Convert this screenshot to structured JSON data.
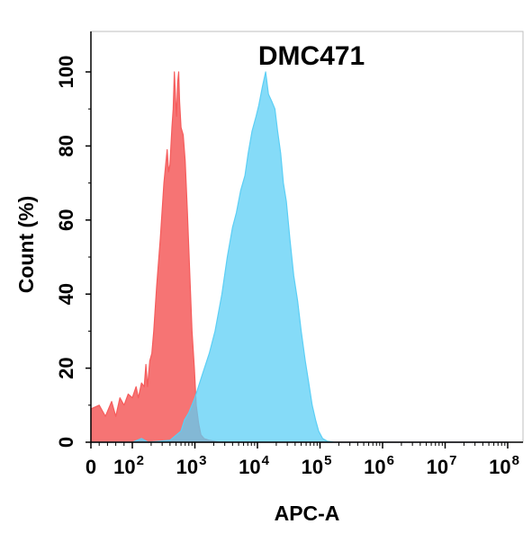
{
  "chart_data": {
    "type": "area",
    "title": "DMC471",
    "xlabel": "APC-A",
    "ylabel": "Count  (%)",
    "x_scale": "biexponential",
    "xlim": [
      0,
      100000000
    ],
    "ylim": [
      0,
      100
    ],
    "x_ticks": [
      {
        "value": 0,
        "base": "0",
        "exp": ""
      },
      {
        "value": 100,
        "base": "10",
        "exp": "2"
      },
      {
        "value": 1000,
        "base": "10",
        "exp": "3"
      },
      {
        "value": 10000,
        "base": "10",
        "exp": "4"
      },
      {
        "value": 100000,
        "base": "10",
        "exp": "5"
      },
      {
        "value": 1000000,
        "base": "10",
        "exp": "6"
      },
      {
        "value": 10000000,
        "base": "10",
        "exp": "7"
      },
      {
        "value": 100000000,
        "base": "10",
        "exp": "8"
      }
    ],
    "y_ticks": [
      0,
      20,
      40,
      60,
      80,
      100
    ],
    "grid": false,
    "series": [
      {
        "color": "#f55c5c",
        "points": [
          [
            0,
            9
          ],
          [
            20,
            10
          ],
          [
            35,
            7
          ],
          [
            50,
            11
          ],
          [
            60,
            7
          ],
          [
            70,
            12
          ],
          [
            80,
            10
          ],
          [
            90,
            13
          ],
          [
            100,
            12
          ],
          [
            115,
            15
          ],
          [
            125,
            12
          ],
          [
            140,
            16
          ],
          [
            155,
            15
          ],
          [
            165,
            21
          ],
          [
            175,
            15
          ],
          [
            190,
            22
          ],
          [
            205,
            24
          ],
          [
            220,
            30
          ],
          [
            245,
            42
          ],
          [
            280,
            55
          ],
          [
            320,
            70
          ],
          [
            360,
            79
          ],
          [
            380,
            73
          ],
          [
            400,
            75
          ],
          [
            430,
            85
          ],
          [
            450,
            90
          ],
          [
            470,
            100
          ],
          [
            490,
            93
          ],
          [
            510,
            88
          ],
          [
            530,
            97
          ],
          [
            550,
            100
          ],
          [
            570,
            92
          ],
          [
            600,
            85
          ],
          [
            650,
            83
          ],
          [
            700,
            76
          ],
          [
            760,
            62
          ],
          [
            830,
            45
          ],
          [
            900,
            30
          ],
          [
            980,
            20
          ],
          [
            1050,
            10
          ],
          [
            1150,
            5
          ],
          [
            1250,
            2
          ],
          [
            1400,
            1
          ],
          [
            1700,
            0.5
          ],
          [
            2500,
            0
          ],
          [
            100000000,
            0
          ]
        ]
      },
      {
        "color": "#5ccff5",
        "points": [
          [
            0,
            0
          ],
          [
            100,
            0
          ],
          [
            140,
            1
          ],
          [
            180,
            0
          ],
          [
            400,
            0.5
          ],
          [
            600,
            3
          ],
          [
            680,
            6
          ],
          [
            800,
            8
          ],
          [
            1000,
            12
          ],
          [
            1300,
            18
          ],
          [
            1700,
            24
          ],
          [
            2100,
            30
          ],
          [
            2700,
            40
          ],
          [
            3300,
            50
          ],
          [
            4000,
            58
          ],
          [
            4600,
            62
          ],
          [
            5400,
            68
          ],
          [
            6300,
            72
          ],
          [
            7100,
            78
          ],
          [
            8200,
            84
          ],
          [
            9500,
            88
          ],
          [
            10500,
            91
          ],
          [
            12000,
            96
          ],
          [
            13500,
            100
          ],
          [
            15000,
            94
          ],
          [
            17000,
            92
          ],
          [
            19000,
            90
          ],
          [
            21000,
            84
          ],
          [
            23500,
            78
          ],
          [
            26000,
            70
          ],
          [
            29000,
            65
          ],
          [
            33000,
            55
          ],
          [
            38000,
            45
          ],
          [
            44000,
            38
          ],
          [
            50000,
            30
          ],
          [
            58000,
            22
          ],
          [
            66000,
            16
          ],
          [
            75000,
            10
          ],
          [
            85000,
            6
          ],
          [
            95000,
            3
          ],
          [
            110000,
            1
          ],
          [
            130000,
            0.3
          ],
          [
            170000,
            0
          ],
          [
            100000000,
            0
          ]
        ]
      }
    ]
  }
}
